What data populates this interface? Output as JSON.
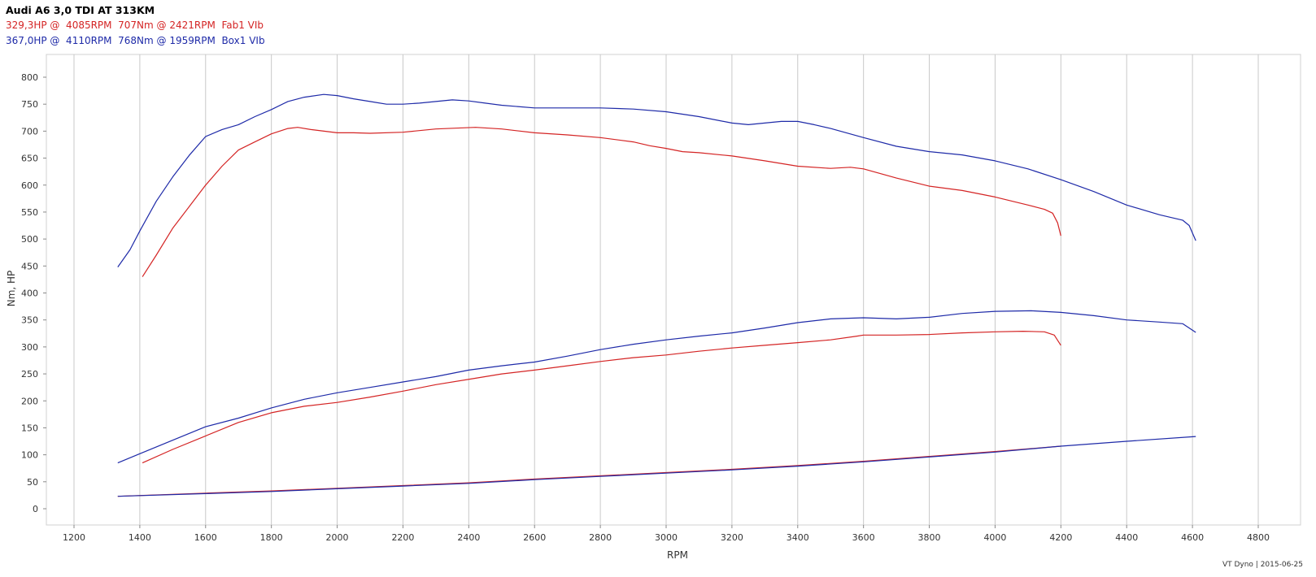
{
  "header": {
    "title": "Audi A6 3,0 TDI AT 313KM",
    "series_lines": [
      "329,3HP @  4085RPM  707Nm @ 2421RPM  Fab1 VIb",
      "367,0HP @  4110RPM  768Nm @ 1959RPM  Box1 VIb"
    ]
  },
  "footer": "VT Dyno | 2015-06-25",
  "colors": {
    "red": "#d42424",
    "blue": "#1e2aa8",
    "grid": "#c8c8c8"
  },
  "chart_data": {
    "type": "line",
    "xlabel": "RPM",
    "ylabel": "Nm, HP",
    "xlim": [
      1150,
      4800
    ],
    "ylim": [
      0,
      820
    ],
    "x_ticks": [
      1200,
      1400,
      1600,
      1800,
      2000,
      2200,
      2400,
      2600,
      2800,
      3000,
      3200,
      3400,
      3600,
      3800,
      4000,
      4200,
      4400,
      4600,
      4800
    ],
    "y_ticks": [
      0,
      50,
      100,
      150,
      200,
      250,
      300,
      350,
      400,
      450,
      500,
      550,
      600,
      650,
      700,
      750,
      800
    ],
    "grid": "vertical",
    "series": [
      {
        "name": "Fab1 VIb",
        "quantity": "torque",
        "color": "red",
        "points": [
          [
            1408,
            430
          ],
          [
            1450,
            470
          ],
          [
            1500,
            520
          ],
          [
            1550,
            560
          ],
          [
            1600,
            600
          ],
          [
            1650,
            635
          ],
          [
            1700,
            665
          ],
          [
            1750,
            680
          ],
          [
            1800,
            695
          ],
          [
            1850,
            705
          ],
          [
            1880,
            707
          ],
          [
            1920,
            703
          ],
          [
            1960,
            700
          ],
          [
            2000,
            697
          ],
          [
            2050,
            697
          ],
          [
            2100,
            696
          ],
          [
            2200,
            698
          ],
          [
            2300,
            704
          ],
          [
            2421,
            707
          ],
          [
            2500,
            704
          ],
          [
            2600,
            697
          ],
          [
            2700,
            693
          ],
          [
            2800,
            688
          ],
          [
            2900,
            680
          ],
          [
            2950,
            673
          ],
          [
            3000,
            668
          ],
          [
            3050,
            662
          ],
          [
            3100,
            660
          ],
          [
            3200,
            654
          ],
          [
            3300,
            645
          ],
          [
            3400,
            635
          ],
          [
            3500,
            631
          ],
          [
            3560,
            633
          ],
          [
            3600,
            630
          ],
          [
            3700,
            613
          ],
          [
            3800,
            598
          ],
          [
            3900,
            590
          ],
          [
            4000,
            578
          ],
          [
            4100,
            563
          ],
          [
            4150,
            555
          ],
          [
            4175,
            548
          ],
          [
            4190,
            530
          ],
          [
            4200,
            506
          ]
        ]
      },
      {
        "name": "Box1 VIb",
        "quantity": "torque",
        "color": "blue",
        "points": [
          [
            1333,
            448
          ],
          [
            1370,
            480
          ],
          [
            1400,
            515
          ],
          [
            1450,
            570
          ],
          [
            1500,
            615
          ],
          [
            1550,
            655
          ],
          [
            1600,
            690
          ],
          [
            1650,
            703
          ],
          [
            1700,
            712
          ],
          [
            1750,
            727
          ],
          [
            1800,
            740
          ],
          [
            1850,
            755
          ],
          [
            1900,
            763
          ],
          [
            1959,
            768
          ],
          [
            2000,
            766
          ],
          [
            2050,
            760
          ],
          [
            2100,
            755
          ],
          [
            2150,
            750
          ],
          [
            2200,
            750
          ],
          [
            2250,
            752
          ],
          [
            2300,
            755
          ],
          [
            2350,
            758
          ],
          [
            2400,
            756
          ],
          [
            2450,
            752
          ],
          [
            2500,
            748
          ],
          [
            2600,
            743
          ],
          [
            2700,
            743
          ],
          [
            2800,
            743
          ],
          [
            2900,
            741
          ],
          [
            3000,
            736
          ],
          [
            3100,
            727
          ],
          [
            3200,
            715
          ],
          [
            3250,
            712
          ],
          [
            3300,
            715
          ],
          [
            3350,
            718
          ],
          [
            3400,
            718
          ],
          [
            3450,
            712
          ],
          [
            3500,
            705
          ],
          [
            3600,
            688
          ],
          [
            3700,
            672
          ],
          [
            3800,
            662
          ],
          [
            3900,
            656
          ],
          [
            4000,
            645
          ],
          [
            4100,
            630
          ],
          [
            4200,
            610
          ],
          [
            4300,
            588
          ],
          [
            4400,
            563
          ],
          [
            4500,
            545
          ],
          [
            4570,
            535
          ],
          [
            4590,
            525
          ],
          [
            4610,
            497
          ]
        ]
      },
      {
        "name": "Fab1 VIb",
        "quantity": "power",
        "color": "red",
        "points": [
          [
            1408,
            85
          ],
          [
            1500,
            110
          ],
          [
            1600,
            135
          ],
          [
            1700,
            160
          ],
          [
            1800,
            178
          ],
          [
            1900,
            190
          ],
          [
            2000,
            197
          ],
          [
            2100,
            207
          ],
          [
            2200,
            218
          ],
          [
            2300,
            230
          ],
          [
            2421,
            242
          ],
          [
            2500,
            250
          ],
          [
            2600,
            257
          ],
          [
            2700,
            265
          ],
          [
            2800,
            273
          ],
          [
            2900,
            280
          ],
          [
            3000,
            285
          ],
          [
            3100,
            292
          ],
          [
            3200,
            298
          ],
          [
            3300,
            303
          ],
          [
            3400,
            308
          ],
          [
            3500,
            313
          ],
          [
            3580,
            320
          ],
          [
            3600,
            322
          ],
          [
            3700,
            322
          ],
          [
            3800,
            323
          ],
          [
            3900,
            326
          ],
          [
            4000,
            328
          ],
          [
            4085,
            329
          ],
          [
            4150,
            328
          ],
          [
            4180,
            322
          ],
          [
            4200,
            303
          ]
        ]
      },
      {
        "name": "Box1 VIb",
        "quantity": "power",
        "color": "blue",
        "points": [
          [
            1333,
            85
          ],
          [
            1400,
            102
          ],
          [
            1500,
            127
          ],
          [
            1600,
            152
          ],
          [
            1700,
            168
          ],
          [
            1800,
            187
          ],
          [
            1900,
            203
          ],
          [
            2000,
            215
          ],
          [
            2100,
            225
          ],
          [
            2200,
            235
          ],
          [
            2300,
            245
          ],
          [
            2400,
            257
          ],
          [
            2500,
            265
          ],
          [
            2600,
            272
          ],
          [
            2700,
            283
          ],
          [
            2800,
            295
          ],
          [
            2900,
            305
          ],
          [
            3000,
            313
          ],
          [
            3100,
            320
          ],
          [
            3200,
            326
          ],
          [
            3300,
            335
          ],
          [
            3400,
            345
          ],
          [
            3500,
            352
          ],
          [
            3600,
            354
          ],
          [
            3700,
            352
          ],
          [
            3800,
            355
          ],
          [
            3900,
            362
          ],
          [
            4000,
            366
          ],
          [
            4110,
            367
          ],
          [
            4200,
            364
          ],
          [
            4300,
            358
          ],
          [
            4400,
            350
          ],
          [
            4500,
            346
          ],
          [
            4570,
            343
          ],
          [
            4610,
            327
          ]
        ]
      },
      {
        "name": "Fab1 VIb",
        "quantity": "loss",
        "color": "red",
        "points": [
          [
            1333,
            23
          ],
          [
            1600,
            29
          ],
          [
            1800,
            33
          ],
          [
            2000,
            38
          ],
          [
            2200,
            43
          ],
          [
            2400,
            48
          ],
          [
            2600,
            55
          ],
          [
            2800,
            61
          ],
          [
            3000,
            67
          ],
          [
            3200,
            73
          ],
          [
            3400,
            80
          ],
          [
            3600,
            88
          ],
          [
            3800,
            97
          ],
          [
            4000,
            106
          ],
          [
            4200,
            116
          ]
        ]
      },
      {
        "name": "Box1 VIb",
        "quantity": "loss",
        "color": "blue",
        "points": [
          [
            1333,
            23
          ],
          [
            1600,
            28
          ],
          [
            1800,
            32
          ],
          [
            2000,
            37
          ],
          [
            2200,
            42
          ],
          [
            2400,
            47
          ],
          [
            2600,
            54
          ],
          [
            2800,
            60
          ],
          [
            3000,
            66
          ],
          [
            3200,
            72
          ],
          [
            3400,
            79
          ],
          [
            3600,
            87
          ],
          [
            3800,
            96
          ],
          [
            4000,
            105
          ],
          [
            4200,
            116
          ],
          [
            4400,
            125
          ],
          [
            4610,
            134
          ]
        ]
      }
    ]
  }
}
